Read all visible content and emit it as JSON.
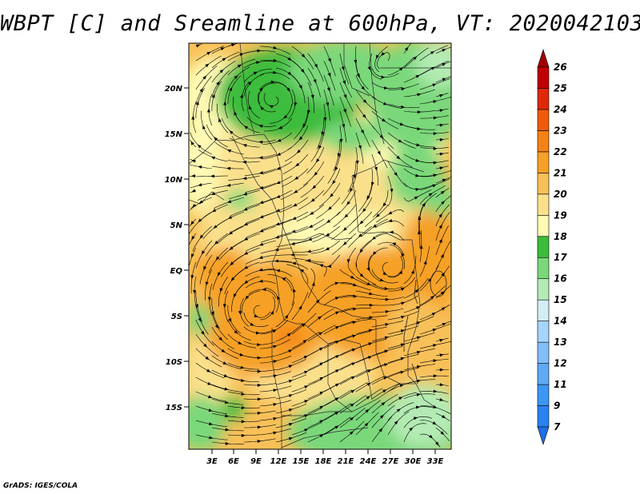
{
  "title": "WBPT [C] and Sreamline at 600hPa, VT: 2020042103",
  "credit": "GrADS: IGES/COLA",
  "map": {
    "lat_labels": [
      "20N",
      "15N",
      "10N",
      "5N",
      "EQ",
      "5S",
      "10S",
      "15S"
    ],
    "lon_labels": [
      "3E",
      "6E",
      "9E",
      "12E",
      "15E",
      "18E",
      "21E",
      "24E",
      "27E",
      "30E",
      "33E"
    ]
  },
  "colorbar": {
    "levels": [
      "7",
      "9",
      "11",
      "12",
      "13",
      "14",
      "15",
      "16",
      "17",
      "18",
      "19",
      "20",
      "21",
      "22",
      "23",
      "24",
      "25",
      "26"
    ],
    "colors": [
      "#1e6ee6",
      "#2a82f0",
      "#3c96f5",
      "#5faaf5",
      "#82bef8",
      "#a6d4fa",
      "#d2eef4",
      "#b4ebb4",
      "#7ad87a",
      "#3cbc3c",
      "#fffab4",
      "#fbe08c",
      "#f8c058",
      "#f6a028",
      "#f58214",
      "#f05a0a",
      "#e02808",
      "#c00000",
      "#a00000"
    ]
  }
}
